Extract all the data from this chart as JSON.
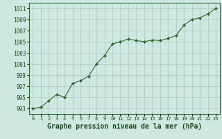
{
  "x": [
    0,
    1,
    2,
    3,
    4,
    5,
    6,
    7,
    8,
    9,
    10,
    11,
    12,
    13,
    14,
    15,
    16,
    17,
    18,
    19,
    20,
    21,
    22,
    23
  ],
  "y": [
    993.0,
    993.2,
    994.4,
    995.5,
    995.0,
    997.5,
    998.0,
    998.8,
    1001.0,
    1002.5,
    1004.6,
    1005.0,
    1005.5,
    1005.2,
    1005.0,
    1005.3,
    1005.2,
    1005.6,
    1006.1,
    1008.0,
    1009.0,
    1009.3,
    1010.0,
    1011.0
  ],
  "line_color": "#2d6a2d",
  "marker": "D",
  "marker_size": 2.2,
  "bg_color": "#cce8e0",
  "grid_color": "#a8c8bc",
  "xlabel": "Graphe pression niveau de la mer (hPa)",
  "xlabel_fontsize": 7,
  "xlabel_color": "#1a4a1a",
  "yticks": [
    993,
    995,
    997,
    999,
    1001,
    1003,
    1005,
    1007,
    1009,
    1011
  ],
  "ylim": [
    992.0,
    1012.0
  ],
  "xlim": [
    -0.5,
    23.5
  ],
  "xticks": [
    0,
    1,
    2,
    3,
    4,
    5,
    6,
    7,
    8,
    9,
    10,
    11,
    12,
    13,
    14,
    15,
    16,
    17,
    18,
    19,
    20,
    21,
    22,
    23
  ],
  "ytick_fontsize": 5.5,
  "xtick_fontsize": 5.0,
  "tick_color": "#1a4a1a",
  "spine_color": "#2d6a2d",
  "line_width": 0.8
}
